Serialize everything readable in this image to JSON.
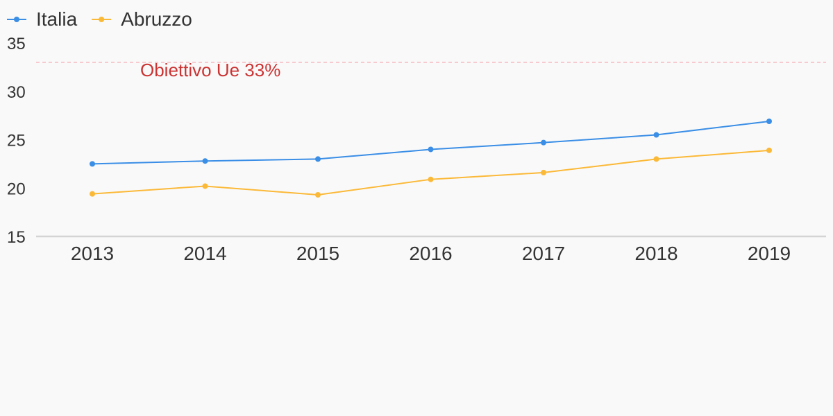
{
  "chart_data": {
    "type": "line",
    "title": "",
    "xlabel": "",
    "ylabel": "",
    "x": [
      "2013",
      "2014",
      "2015",
      "2016",
      "2017",
      "2018",
      "2019"
    ],
    "ylim": [
      15,
      35
    ],
    "yticks": [
      15,
      20,
      25,
      30,
      35
    ],
    "grid": false,
    "legend_position": "top-left",
    "series": [
      {
        "name": "Italia",
        "color": "#3a8ee6",
        "values": [
          22.5,
          22.8,
          23.0,
          24.0,
          24.7,
          25.5,
          26.9
        ]
      },
      {
        "name": "Abruzzo",
        "color": "#fbb938",
        "values": [
          19.4,
          20.2,
          19.3,
          20.9,
          21.6,
          23.0,
          23.9
        ]
      }
    ],
    "reference_line": {
      "value": 33,
      "label": "Obiettivo Ue 33%",
      "color": "#cc3333"
    }
  }
}
